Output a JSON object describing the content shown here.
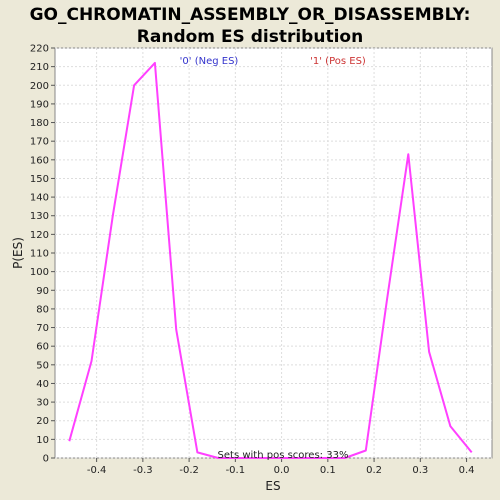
{
  "colors": {
    "background": "#ECE9D8",
    "plot_background": "#FFFFFF",
    "line": "#FF40FF",
    "neg_legend": "#3333CC",
    "pos_legend": "#CC3333",
    "grid": "#DDDDDD"
  },
  "chart_data": {
    "type": "line",
    "title": "GO_CHROMATIN_ASSEMBLY_OR_DISASSEMBLY:",
    "subtitle": "Random ES distribution",
    "xlabel": "ES",
    "ylabel": "P(ES)",
    "xlim": [
      -0.49,
      0.455
    ],
    "ylim": [
      0,
      220
    ],
    "xticks": [
      -0.4,
      -0.3,
      -0.2,
      -0.1,
      0.0,
      0.1,
      0.2,
      0.3,
      0.4
    ],
    "xtick_labels": [
      "-0.4",
      "-0.3",
      "-0.2",
      "-0.1",
      "0.0",
      "0.1",
      "0.2",
      "0.3",
      "0.4"
    ],
    "yticks": [
      0,
      10,
      20,
      30,
      40,
      50,
      60,
      70,
      80,
      90,
      100,
      110,
      120,
      130,
      140,
      150,
      160,
      170,
      180,
      190,
      200,
      210,
      220
    ],
    "ytick_labels": [
      "0",
      "10",
      "20",
      "30",
      "40",
      "50",
      "60",
      "70",
      "80",
      "90",
      "100",
      "110",
      "120",
      "130",
      "140",
      "150",
      "160",
      "170",
      "180",
      "190",
      "200",
      "210",
      "220"
    ],
    "grid": true,
    "legend": [
      "'0' (Neg ES)",
      "'1' (Pos ES)"
    ],
    "annotation": "Sets with pos scores: 33%",
    "series": [
      {
        "x": [
          -0.459,
          -0.411,
          -0.365,
          -0.319,
          -0.274,
          -0.228,
          -0.182,
          -0.137,
          -0.091,
          -0.045,
          0.0,
          0.045,
          0.091,
          0.137,
          0.182,
          0.228,
          0.274,
          0.319,
          0.365,
          0.411
        ],
        "y": [
          9,
          52,
          130,
          200,
          212,
          69,
          3,
          0,
          0,
          0,
          0,
          0,
          0,
          0,
          4,
          85,
          163,
          57,
          17,
          3
        ]
      }
    ]
  }
}
